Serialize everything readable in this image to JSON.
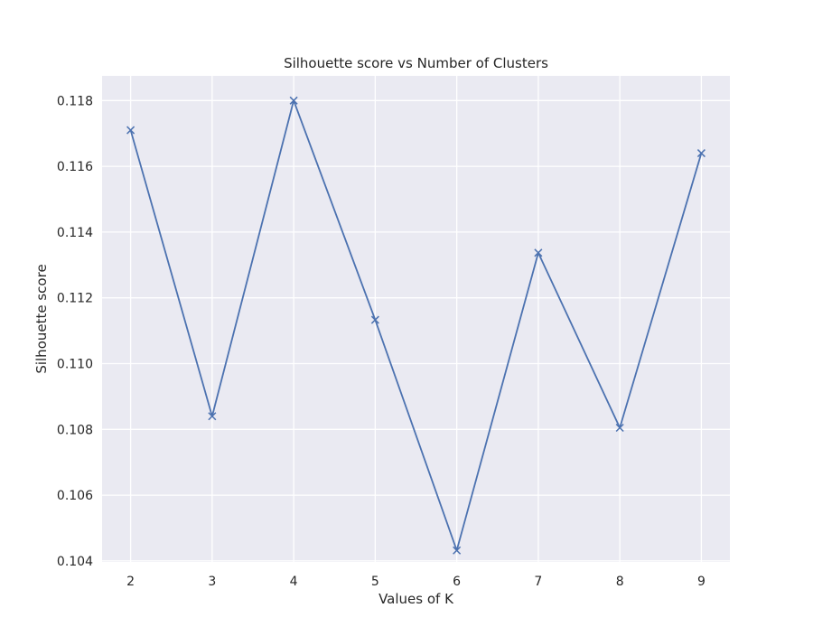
{
  "chart_data": {
    "type": "line",
    "title": "Silhouette score vs Number of Clusters",
    "xlabel": "Values of K",
    "ylabel": "Silhouette score",
    "x": [
      2,
      3,
      4,
      5,
      6,
      7,
      8,
      9
    ],
    "series": [
      {
        "values": [
          0.1171,
          0.1084,
          0.118,
          0.11133,
          0.10432,
          0.11337,
          0.10805,
          0.1164
        ],
        "marker": "x",
        "color": "#4c72b0"
      }
    ],
    "xticks": [
      2,
      3,
      4,
      5,
      6,
      7,
      8,
      9
    ],
    "yticks": [
      0.104,
      0.106,
      0.108,
      0.11,
      0.112,
      0.114,
      0.116,
      0.118
    ],
    "ytick_labels": [
      "0.104",
      "0.106",
      "0.108",
      "0.110",
      "0.112",
      "0.114",
      "0.116",
      "0.118"
    ],
    "xlim": [
      1.65,
      9.35
    ],
    "ylim": [
      0.10397,
      0.11875
    ],
    "grid": true,
    "legend": "none",
    "colors": {
      "plot_background": "#eaeaf2",
      "grid": "#ffffff",
      "line": "#4c72b0",
      "text": "#262626"
    }
  }
}
